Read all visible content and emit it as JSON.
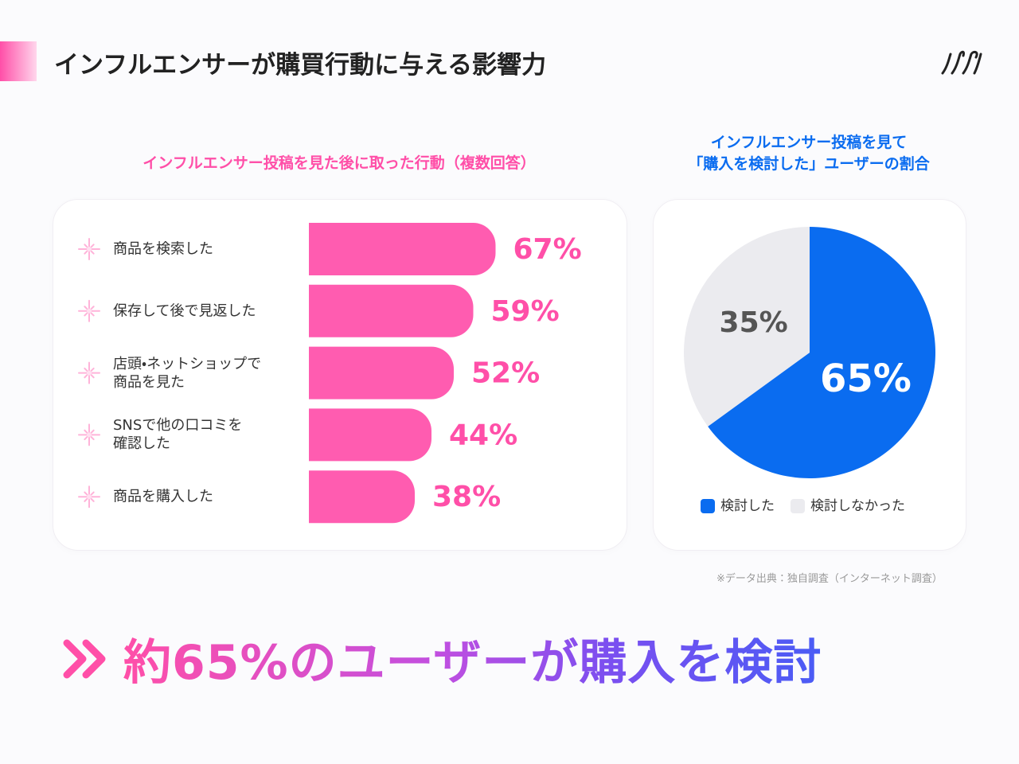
{
  "title": "インフルエンサーが購買行動に与える影響力",
  "chart_data": [
    {
      "type": "bar",
      "title": "インフルエンサー投稿を見た後に取った行動（複数回答）",
      "categories": [
        "商品を検索した",
        "保存して後で見返した",
        "店頭・ネットショップで\n商品を見た",
        "SNSで他の口コミを\n確認した",
        "商品を購入した"
      ],
      "values": [
        67,
        59,
        52,
        44,
        38
      ],
      "value_labels": [
        "67%",
        "59%",
        "52%",
        "44%",
        "38%"
      ],
      "color": "#ff5cb0"
    },
    {
      "type": "pie",
      "title": "インフルエンサー投稿を見て\n「購入を検討した」ユーザーの割合",
      "categories": [
        "検討した",
        "検討しなかった"
      ],
      "values": [
        65,
        35
      ],
      "value_labels": [
        "65%",
        "35%"
      ],
      "colors": [
        "#0a6cf0",
        "#ebebef"
      ],
      "label_colors": [
        "#ffffff",
        "#555555"
      ]
    }
  ],
  "source": "※データ出典：独自調査（インターネット調査）",
  "conclusion": "約65%のユーザーが購入を検討"
}
